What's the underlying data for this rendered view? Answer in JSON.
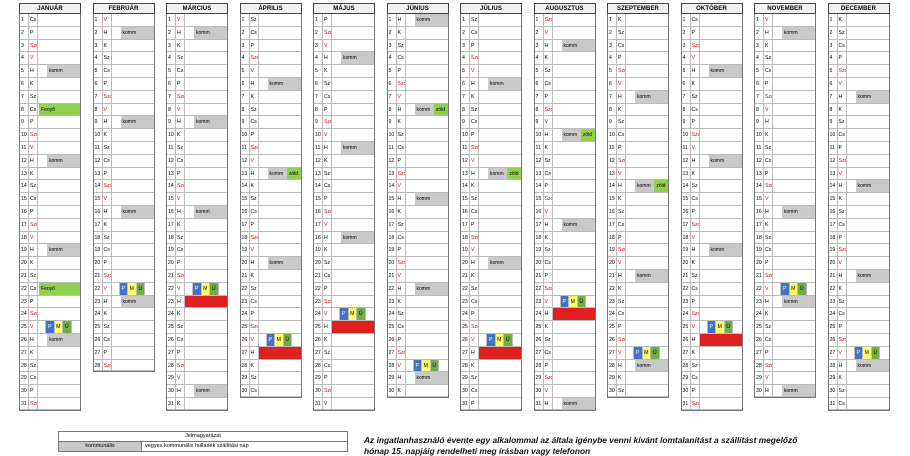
{
  "calendar": {
    "year_months": [
      {
        "name": "JANUÁR",
        "start": 3,
        "days": 31,
        "events": {
          "5": "komm",
          "8": "Fenyő",
          "12": "komm",
          "19": "komm",
          "22": "Fenyő",
          "26": "komm"
        },
        "pmu": [
          25
        ],
        "red": []
      },
      {
        "name": "FEBRUÁR",
        "start": 6,
        "days": 28,
        "events": {
          "2": "komm",
          "9": "komm",
          "16": "komm",
          "23": "komm"
        },
        "pmu": [
          22
        ],
        "red": []
      },
      {
        "name": "MÁRCIUS",
        "start": 6,
        "days": 31,
        "events": {
          "2": "komm",
          "9": "komm",
          "16": "komm",
          "30": "komm"
        },
        "pmu": [
          22
        ],
        "red": [
          23
        ]
      },
      {
        "name": "ÁPRILIS",
        "start": 2,
        "days": 30,
        "events": {
          "6": "komm",
          "13": "komm",
          "20": "komm"
        },
        "green": {
          "13": "zöld"
        },
        "pmu": [
          26
        ],
        "red": [
          27
        ]
      },
      {
        "name": "MÁJUS",
        "start": 4,
        "days": 31,
        "events": {
          "4": "komm",
          "11": "komm",
          "18": "komm"
        },
        "pmu": [
          24
        ],
        "red": [
          25
        ]
      },
      {
        "name": "JÚNIUS",
        "start": 0,
        "days": 30,
        "events": {
          "1": "komm",
          "8": "komm",
          "15": "komm",
          "22": "komm",
          "29": "komm"
        },
        "green": {
          "8": "zöld"
        },
        "pmu": [
          28
        ],
        "red": [
          22
        ]
      },
      {
        "name": "JÚLIUS",
        "start": 2,
        "days": 31,
        "events": {
          "6": "komm",
          "13": "komm",
          "20": "komm"
        },
        "green": {
          "13": "zöld"
        },
        "pmu": [
          26
        ],
        "red": [
          27
        ]
      },
      {
        "name": "AUGUSZTUS",
        "start": 5,
        "days": 31,
        "events": {
          "3": "komm",
          "10": "komm",
          "17": "komm",
          "31": "komm"
        },
        "green": {
          "10": "zöld"
        },
        "pmu": [
          23
        ],
        "red": [
          24
        ]
      },
      {
        "name": "SZEPTEMBER",
        "start": 1,
        "days": 30,
        "events": {
          "7": "komm",
          "14": "komm",
          "21": "komm",
          "28": "komm"
        },
        "green": {
          "14": "zöld"
        },
        "pmu": [
          27
        ],
        "red": []
      },
      {
        "name": "OKTÓBER",
        "start": 3,
        "days": 31,
        "events": {
          "5": "komm",
          "12": "komm",
          "19": "komm"
        },
        "pmu": [
          25
        ],
        "red": [
          26
        ]
      },
      {
        "name": "NOVEMBER",
        "start": 6,
        "days": 30,
        "events": {
          "2": "komm",
          "16": "komm",
          "23": "komm",
          "30": "komm"
        },
        "green": {
          "9": "zöld"
        },
        "pmu": [
          22
        ],
        "red": []
      },
      {
        "name": "DECEMBER",
        "start": 1,
        "days": 31,
        "events": {
          "7": "komm",
          "14": "komm",
          "21": "komm",
          "28": "komm"
        },
        "pmu": [
          27
        ],
        "red": []
      }
    ],
    "weekday_letters": [
      "H",
      "K",
      "Sz",
      "Cs",
      "P",
      "Szo",
      "V"
    ],
    "pmu_letters": [
      "P",
      "M",
      "Ü"
    ]
  },
  "legend": {
    "title": "Jelmagyarázat",
    "key": "kommunális",
    "value": "vegyes kommunális hulladék szállítási nap"
  },
  "notice": {
    "line1": "Az ingatlanhasználó évente egy alkalommal az általa igénybe venni kívánt lomtalanítást a szállítást megelőző",
    "line2": "hónap 15. napjáig rendelheti meg írásban vagy telefonon"
  },
  "colors": {
    "komm": "#c9c9c9",
    "zold": "#92d050",
    "paper": "#4472c4",
    "metal": "#ffff66",
    "uveg": "#70ad47",
    "red": "#e02020"
  }
}
